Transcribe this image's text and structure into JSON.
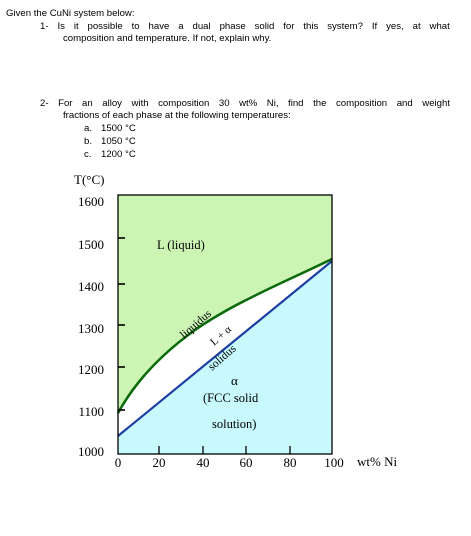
{
  "intro": "Given the CuNi system below:",
  "q1": {
    "line1_words": [
      "1-",
      "Is",
      "it",
      "possible",
      "to",
      "have",
      "a",
      "dual",
      "phase",
      "solid",
      "for",
      "this",
      "system?",
      "If",
      "yes,",
      "at",
      "what"
    ],
    "line2": "composition and temperature. If not, explain why."
  },
  "q2": {
    "line1_words": [
      "2-",
      "For",
      "an",
      "alloy",
      "with",
      "composition",
      "30",
      "wt%",
      "Ni,",
      "find",
      "the",
      "composition",
      "and",
      "weight"
    ],
    "line2": "fractions of each phase at the following temperatures:",
    "items": [
      {
        "marker": "a.",
        "text": "1500 °C"
      },
      {
        "marker": "b.",
        "text": "1050 °C"
      },
      {
        "marker": "c.",
        "text": "1200 °C"
      }
    ]
  },
  "diagram": {
    "y_axis_label": "T(°C)",
    "x_axis_label": "wt% Ni",
    "y_ticks": [
      "1600",
      "1500",
      "1400",
      "1300",
      "1200",
      "1100",
      "1000"
    ],
    "x_ticks": [
      "0",
      "20",
      "40",
      "60",
      "80",
      "100"
    ],
    "liquid_label": "L (liquid)",
    "liquidus_label": "liquidus",
    "solidus_label": "solidus",
    "two_phase_label": "L + α",
    "alpha_label": "α",
    "fcc_label_line1": "(FCC solid",
    "fcc_label_line2": "solution)",
    "colors": {
      "liquid": "#ccf5b3",
      "solid": "#c7f9fd",
      "liquidus": "#0b6b0b",
      "solidus": "#1f3fa3",
      "border": "#000000"
    }
  }
}
